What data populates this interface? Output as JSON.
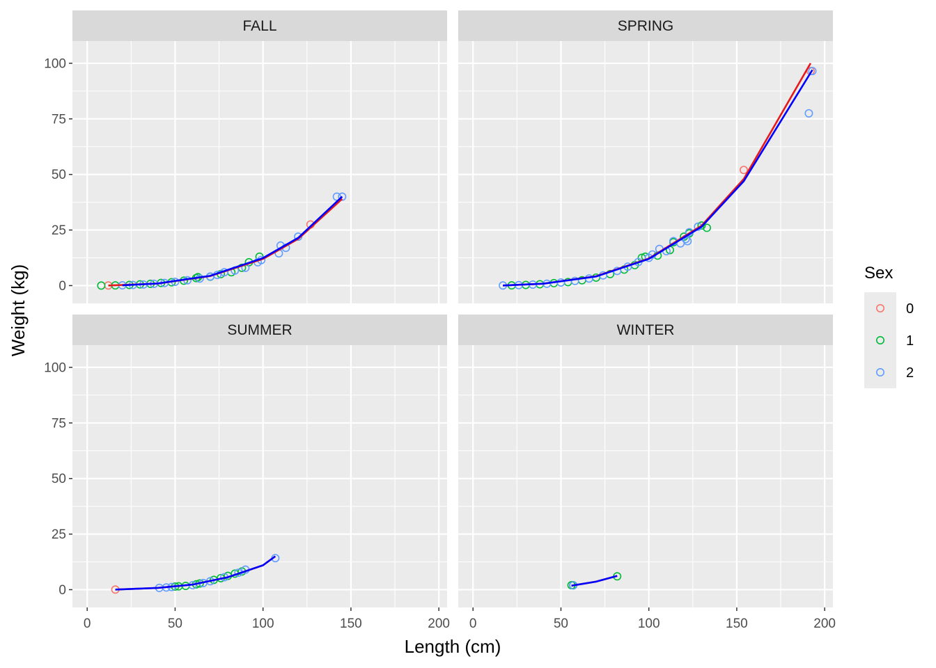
{
  "chart_data": {
    "type": "scatter",
    "xlabel": "Length (cm)",
    "ylabel": "Weight (kg)",
    "xlim": [
      0,
      200
    ],
    "ylim": [
      0,
      100
    ],
    "x_ticks": [
      0,
      50,
      100,
      150,
      200
    ],
    "y_ticks": [
      0,
      25,
      50,
      75,
      100
    ],
    "grid": true,
    "legend": {
      "title": "Sex",
      "position": "right",
      "entries": [
        {
          "name": "0",
          "color": "#F8766D"
        },
        {
          "name": "1",
          "color": "#00BA38"
        },
        {
          "name": "2",
          "color": "#619CFF"
        }
      ]
    },
    "fit_colors": {
      "sex0": "#E41A1C",
      "sex2": "#0000FF"
    },
    "panels": [
      {
        "label": "FALL",
        "points": {
          "0": [
            [
              12,
              0.06
            ],
            [
              127,
              27.5
            ]
          ],
          "1": [
            [
              8,
              0.02
            ],
            [
              16,
              0.1
            ],
            [
              24,
              0.3
            ],
            [
              30,
              0.55
            ],
            [
              36,
              0.8
            ],
            [
              42,
              1.2
            ],
            [
              48,
              1.5
            ],
            [
              55,
              2.2
            ],
            [
              62,
              3.4
            ],
            [
              63,
              3.8
            ],
            [
              70,
              4.0
            ],
            [
              76,
              5.2
            ],
            [
              82,
              6.0
            ],
            [
              88,
              8.0
            ],
            [
              92,
              10.5
            ],
            [
              98,
              13.0
            ]
          ],
          "2": [
            [
              20,
              0.12
            ],
            [
              26,
              0.3
            ],
            [
              32,
              0.5
            ],
            [
              38,
              0.8
            ],
            [
              44,
              1.2
            ],
            [
              50,
              1.7
            ],
            [
              57,
              2.4
            ],
            [
              64,
              3.2
            ],
            [
              70,
              4.1
            ],
            [
              74,
              4.8
            ],
            [
              78,
              6.0
            ],
            [
              84,
              6.8
            ],
            [
              90,
              8.0
            ],
            [
              97,
              10.5
            ],
            [
              99,
              11.5
            ],
            [
              109,
              14.5
            ],
            [
              110,
              18.0
            ],
            [
              113,
              17.0
            ],
            [
              120,
              22.0
            ],
            [
              142,
              40.0
            ],
            [
              145,
              40.0
            ]
          ]
        },
        "fits": {
          "0": [
            [
              12,
              0.05
            ],
            [
              40,
              0.9
            ],
            [
              70,
              4.3
            ],
            [
              100,
              12.0
            ],
            [
              120,
              21.0
            ],
            [
              145,
              39.0
            ]
          ],
          "2": [
            [
              20,
              0.12
            ],
            [
              40,
              0.95
            ],
            [
              70,
              4.4
            ],
            [
              100,
              12.4
            ],
            [
              120,
              21.5
            ],
            [
              145,
              40.0
            ]
          ]
        }
      },
      {
        "label": "SPRING",
        "points": {
          "0": [
            [
              154,
              52.0
            ],
            [
              192,
              96.5
            ]
          ],
          "1": [
            [
              22,
              0.1
            ],
            [
              30,
              0.3
            ],
            [
              38,
              0.6
            ],
            [
              46,
              1.1
            ],
            [
              54,
              1.6
            ],
            [
              62,
              2.4
            ],
            [
              70,
              3.6
            ],
            [
              78,
              5.2
            ],
            [
              86,
              7.2
            ],
            [
              92,
              9.2
            ],
            [
              96,
              12.5
            ],
            [
              98,
              13.0
            ],
            [
              105,
              13.5
            ],
            [
              112,
              16.0
            ],
            [
              114,
              19.5
            ],
            [
              120,
              22.0
            ],
            [
              123,
              23.5
            ],
            [
              130,
              27.0
            ],
            [
              133,
              26.0
            ]
          ],
          "2": [
            [
              17,
              0.05
            ],
            [
              26,
              0.2
            ],
            [
              34,
              0.45
            ],
            [
              42,
              0.85
            ],
            [
              50,
              1.4
            ],
            [
              58,
              2.1
            ],
            [
              66,
              3.2
            ],
            [
              74,
              4.6
            ],
            [
              82,
              6.6
            ],
            [
              88,
              8.5
            ],
            [
              94,
              10.6
            ],
            [
              100,
              12.5
            ],
            [
              102,
              14.0
            ],
            [
              106,
              16.5
            ],
            [
              110,
              15.5
            ],
            [
              114,
              20.0
            ],
            [
              118,
              19.0
            ],
            [
              121,
              21.0
            ],
            [
              122,
              20.0
            ],
            [
              123,
              24.0
            ],
            [
              128,
              26.5
            ],
            [
              191,
              77.5
            ],
            [
              193,
              96.5
            ]
          ]
        },
        "fits": {
          "0": [
            [
              17,
              0.05
            ],
            [
              40,
              0.85
            ],
            [
              70,
              4.2
            ],
            [
              100,
              12.2
            ],
            [
              130,
              27.0
            ],
            [
              154,
              48.0
            ],
            [
              192,
              100.0
            ]
          ],
          "2": [
            [
              17,
              0.05
            ],
            [
              40,
              0.85
            ],
            [
              70,
              4.1
            ],
            [
              100,
              12.0
            ],
            [
              130,
              26.5
            ],
            [
              154,
              47.0
            ],
            [
              193,
              97.0
            ]
          ]
        }
      },
      {
        "label": "SUMMER",
        "points": {
          "0": [
            [
              16,
              0.05
            ]
          ],
          "1": [
            [
              50,
              1.4
            ],
            [
              52,
              1.5
            ],
            [
              56,
              1.7
            ],
            [
              62,
              2.4
            ],
            [
              64,
              2.8
            ],
            [
              72,
              4.4
            ],
            [
              76,
              5.2
            ],
            [
              80,
              6.2
            ],
            [
              84,
              7.2
            ],
            [
              88,
              8.2
            ]
          ],
          "2": [
            [
              41,
              0.8
            ],
            [
              45,
              1.0
            ],
            [
              48,
              1.2
            ],
            [
              60,
              2.0
            ],
            [
              66,
              3.0
            ],
            [
              70,
              3.8
            ],
            [
              78,
              5.6
            ],
            [
              86,
              7.6
            ],
            [
              90,
              9.0
            ],
            [
              107,
              14.2
            ]
          ]
        },
        "fits": {
          "0": [
            [
              16,
              0.05
            ],
            [
              40,
              0.8
            ],
            [
              60,
              2.3
            ],
            [
              80,
              5.6
            ],
            [
              100,
              11.0
            ],
            [
              107,
              15.0
            ]
          ],
          "2": [
            [
              16,
              0.05
            ],
            [
              40,
              0.8
            ],
            [
              60,
              2.3
            ],
            [
              80,
              5.6
            ],
            [
              100,
              11.0
            ],
            [
              107,
              15.0
            ]
          ]
        }
      },
      {
        "label": "WINTER",
        "points": {
          "0": [],
          "1": [
            [
              56,
              2.0
            ],
            [
              57,
              2.0
            ],
            [
              82,
              6.0
            ]
          ],
          "2": [
            [
              57,
              1.9
            ]
          ]
        },
        "fits": {
          "0": [
            [
              56,
              1.8
            ],
            [
              70,
              3.6
            ],
            [
              82,
              6.2
            ]
          ],
          "2": [
            [
              56,
              1.8
            ],
            [
              70,
              3.6
            ],
            [
              82,
              6.2
            ]
          ]
        }
      }
    ]
  }
}
